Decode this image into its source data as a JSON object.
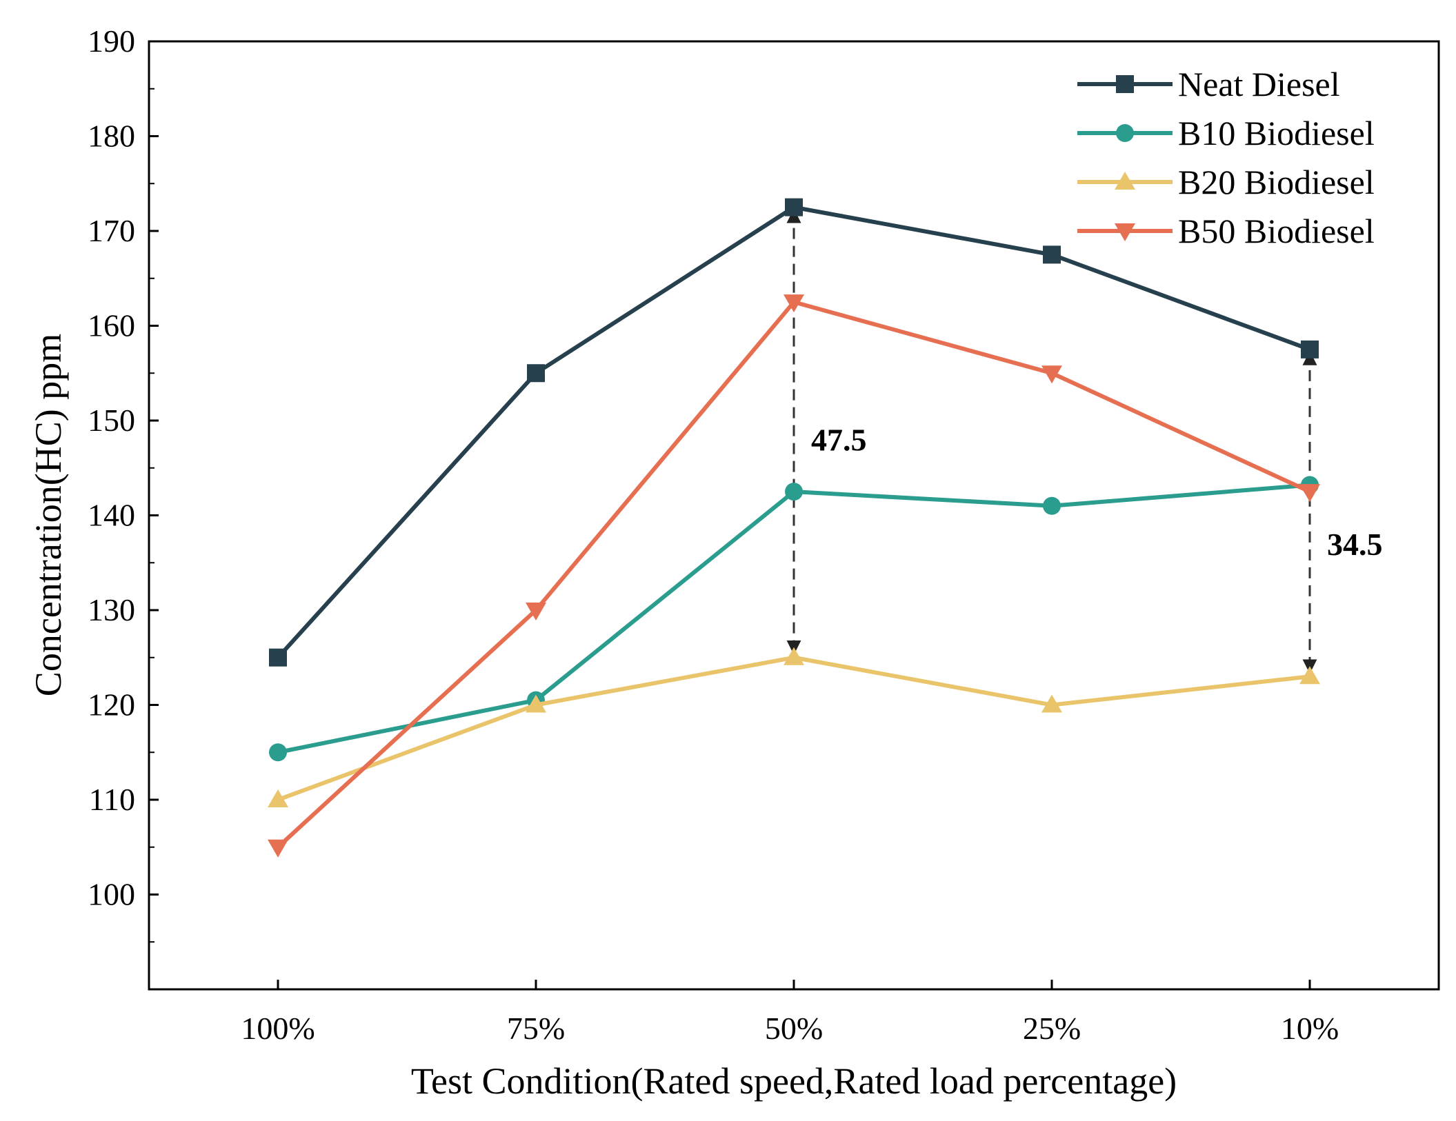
{
  "chart_data": {
    "type": "line",
    "title": "",
    "xlabel": "Test Condition(Rated speed,Rated load percentage)",
    "ylabel": "Concentration(HC) ppm",
    "categories": [
      "100%",
      "75%",
      "50%",
      "25%",
      "10%"
    ],
    "ylim": [
      90,
      190
    ],
    "yticks": [
      100,
      110,
      120,
      130,
      140,
      150,
      160,
      170,
      180,
      190
    ],
    "grid": false,
    "legend_position": "top-right",
    "series": [
      {
        "name": "Neat Diesel",
        "values": [
          125,
          155,
          172.5,
          167.5,
          157.5
        ],
        "color": "#26404e",
        "marker": "square"
      },
      {
        "name": "B10 Biodiesel",
        "values": [
          115,
          120.5,
          142.5,
          141,
          143.2
        ],
        "color": "#2a9d8f",
        "marker": "circle"
      },
      {
        "name": "B20 Biodiesel",
        "values": [
          110,
          120,
          125,
          120,
          123
        ],
        "color": "#e9c46a",
        "marker": "triangle-up"
      },
      {
        "name": "B50 Biodiesel",
        "values": [
          105,
          130,
          162.5,
          155,
          142.5
        ],
        "color": "#e76f51",
        "marker": "triangle-down"
      }
    ],
    "annotations": [
      {
        "text": "47.5",
        "category": "50%",
        "from": 172.5,
        "to": 125,
        "label_y": 148
      },
      {
        "text": "34.5",
        "category": "10%",
        "from": 157.5,
        "to": 123,
        "label_y": 137
      }
    ]
  }
}
